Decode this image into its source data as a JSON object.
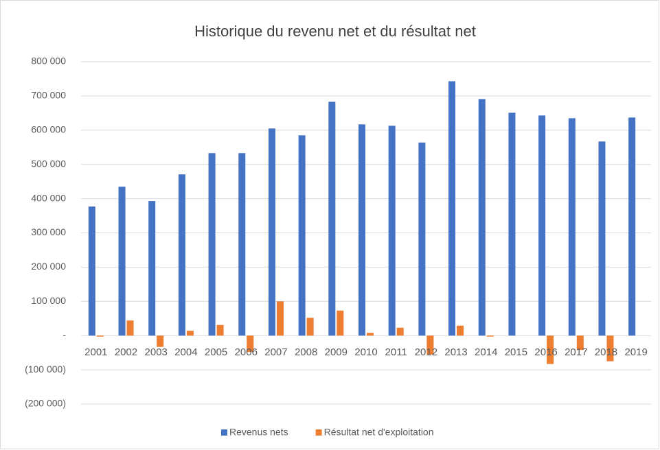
{
  "chart_data": {
    "type": "bar",
    "title": "Historique du revenu net et du résultat net",
    "categories": [
      "2001",
      "2002",
      "2003",
      "2004",
      "2005",
      "2006",
      "2007",
      "2008",
      "2009",
      "2010",
      "2011",
      "2012",
      "2013",
      "2014",
      "2015",
      "2016",
      "2017",
      "2018",
      "2019"
    ],
    "series": [
      {
        "name": "Revenus nets",
        "color": "#4472c4",
        "values": [
          377000,
          435000,
          393000,
          471000,
          533000,
          533000,
          605000,
          585000,
          683000,
          617000,
          613000,
          564000,
          743000,
          691000,
          651000,
          643000,
          635000,
          567000,
          637000
        ]
      },
      {
        "name": "Résultat net d'exploitation",
        "color": "#ed7d31",
        "values": [
          -3000,
          44000,
          -33000,
          14000,
          31000,
          -48000,
          100000,
          52000,
          73000,
          8000,
          23000,
          -55000,
          29000,
          -3000,
          0,
          -83000,
          -42000,
          -75000,
          0
        ]
      }
    ],
    "ylim": [
      -200000,
      800000
    ],
    "yticks": [
      {
        "value": -200000,
        "label": "(200 000)"
      },
      {
        "value": -100000,
        "label": "(100 000)"
      },
      {
        "value": 0,
        "label": "-"
      },
      {
        "value": 100000,
        "label": "100 000"
      },
      {
        "value": 200000,
        "label": "200 000"
      },
      {
        "value": 300000,
        "label": "300 000"
      },
      {
        "value": 400000,
        "label": "400 000"
      },
      {
        "value": 500000,
        "label": "500 000"
      },
      {
        "value": 600000,
        "label": "600 000"
      },
      {
        "value": 700000,
        "label": "700 000"
      },
      {
        "value": 800000,
        "label": "800 000"
      }
    ],
    "grid": true,
    "legend": "bottom"
  }
}
